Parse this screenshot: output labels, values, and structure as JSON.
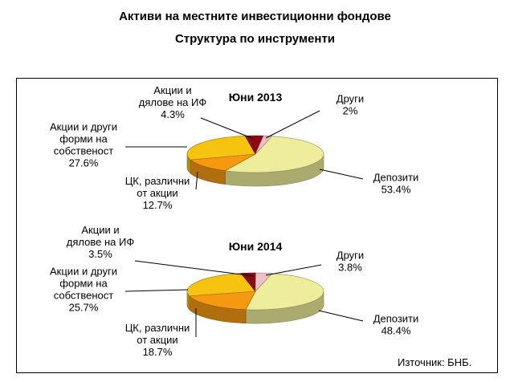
{
  "header": {
    "title": "Активи на местните инвестиционни фондове",
    "subtitle": "Структура по инструменти"
  },
  "source": "Източник: БНБ.",
  "colors": {
    "Депозити": "#eded9b",
    "ЦК, различни от акции": "#f59a10",
    "Акции и други форми на собственост": "#f7c311",
    "Акции и дялове на ИФ": "#8b0a14",
    "Други": "#ecc2c7"
  },
  "chart_data": [
    {
      "type": "pie",
      "title": "Юни 2013",
      "slices": [
        {
          "label": [
            "Депозити"
          ],
          "value": 53.4,
          "display": "53.4%",
          "color": "#eded9b"
        },
        {
          "label": [
            "ЦК, различни",
            "от акции"
          ],
          "value": 12.7,
          "display": "12.7%",
          "color": "#f59a10"
        },
        {
          "label": [
            "Акции и други",
            "форми на",
            "собственост"
          ],
          "value": 27.6,
          "display": "27.6%",
          "color": "#f7c311"
        },
        {
          "label": [
            "Акции и",
            "дялове на ИФ"
          ],
          "value": 4.3,
          "display": "4.3%",
          "color": "#8b0a14"
        },
        {
          "label": [
            "Други"
          ],
          "value": 2,
          "display": "2%",
          "color": "#ecc2c7"
        }
      ]
    },
    {
      "type": "pie",
      "title": "Юни 2014",
      "slices": [
        {
          "label": [
            "Депозити"
          ],
          "value": 48.4,
          "display": "48.4%",
          "color": "#eded9b"
        },
        {
          "label": [
            "ЦК, различни",
            "от акции"
          ],
          "value": 18.7,
          "display": "18.7%",
          "color": "#f59a10"
        },
        {
          "label": [
            "Акции и други",
            "форми на",
            "собственост"
          ],
          "value": 25.7,
          "display": "25.7%",
          "color": "#f7c311"
        },
        {
          "label": [
            "Акции и",
            "дялове на ИФ"
          ],
          "value": 3.5,
          "display": "3.5%",
          "color": "#8b0a14"
        },
        {
          "label": [
            "Други"
          ],
          "value": 3.8,
          "display": "3.8%",
          "color": "#ecc2c7"
        }
      ]
    }
  ]
}
